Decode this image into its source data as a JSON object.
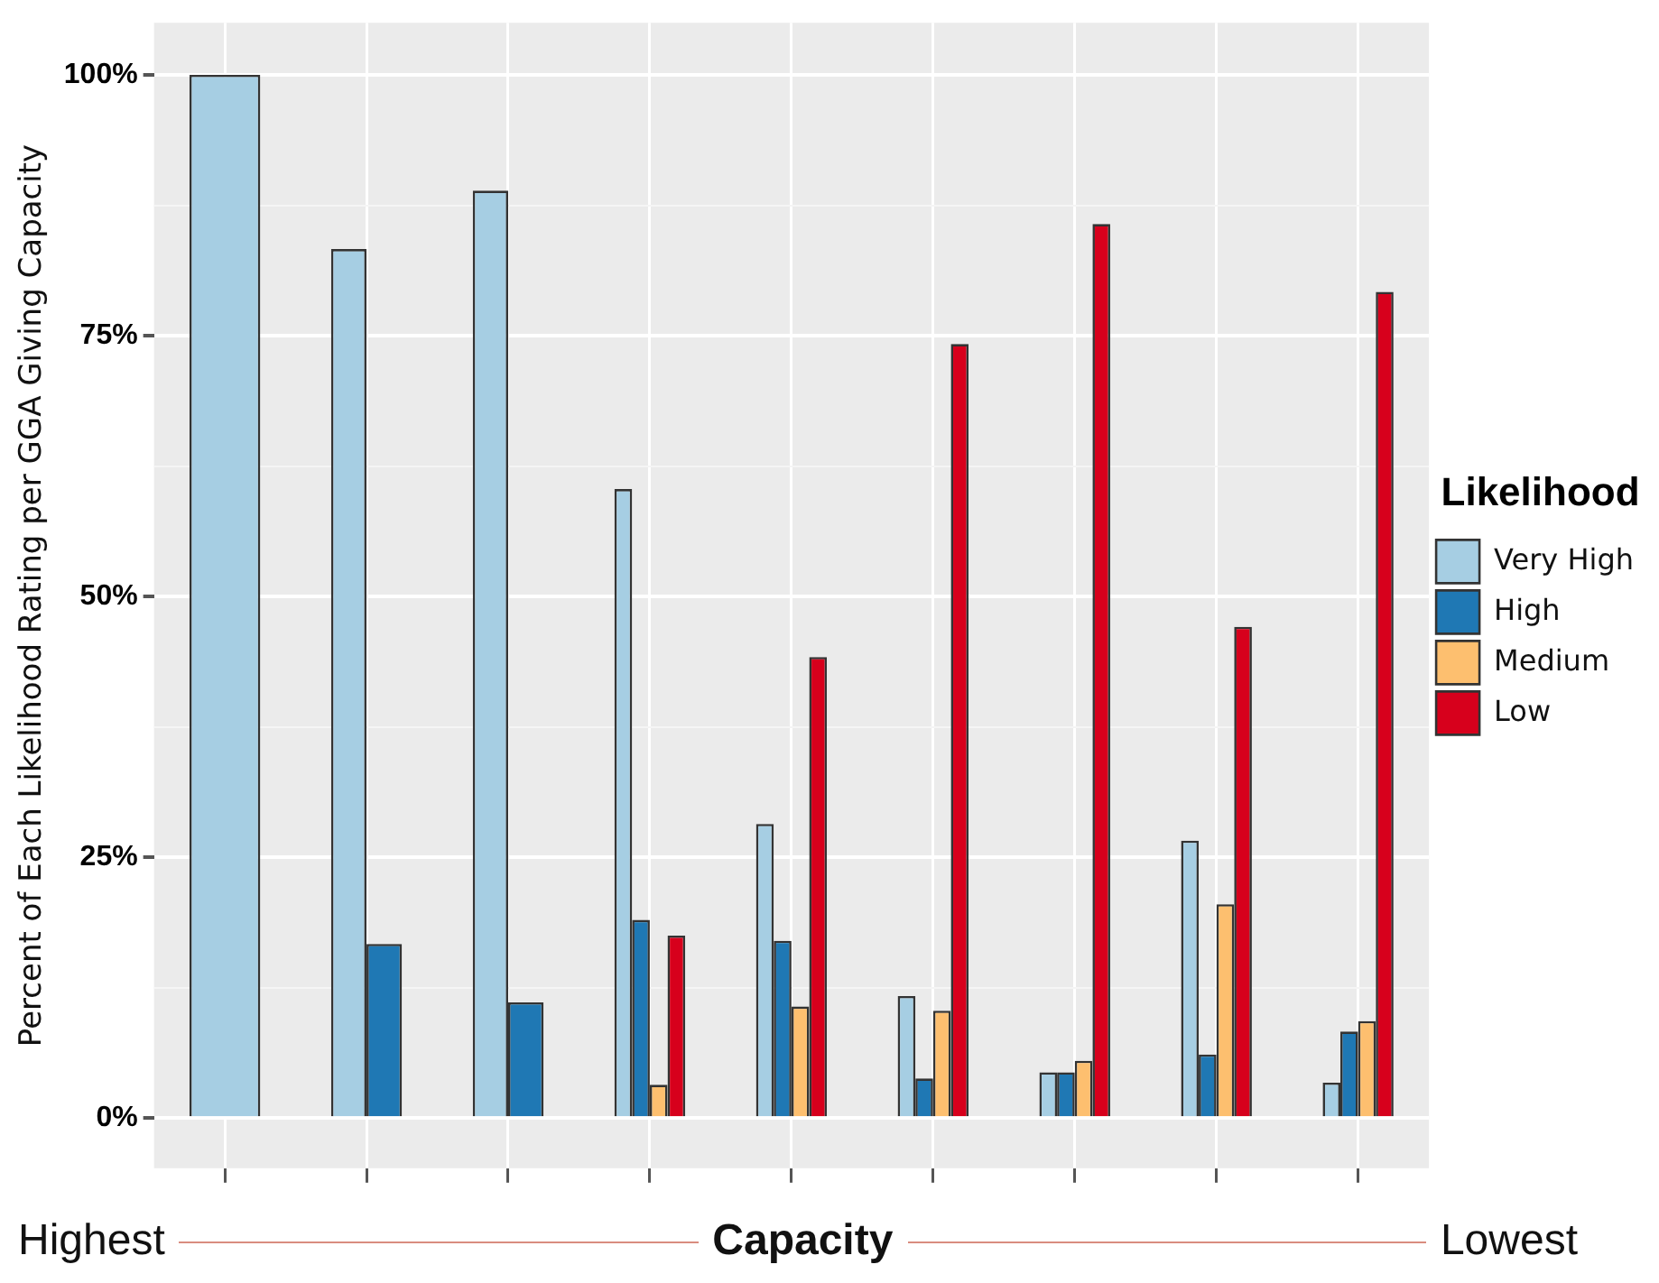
{
  "chart_data": {
    "type": "bar",
    "ylabel": "Percent of Each Likelihood Rating per GGA Giving Capacity",
    "xlabel": "Capacity",
    "annotations": [
      "Highest",
      "Lowest"
    ],
    "categories": [
      null,
      null,
      null,
      null,
      null,
      null,
      null,
      null,
      null
    ],
    "series": [
      {
        "name": "Very High",
        "color": "#a6cee3",
        "values": [
          100,
          83.3,
          88.9,
          60.3,
          28.2,
          11.7,
          4.4,
          26.6,
          3.4
        ]
      },
      {
        "name": "High",
        "color": "#1f78b4",
        "values": [
          null,
          16.7,
          11.1,
          19.0,
          17.0,
          3.8,
          4.4,
          6.1,
          8.3
        ]
      },
      {
        "name": "Medium",
        "color": "#fdbf6f",
        "values": [
          null,
          null,
          null,
          3.2,
          10.7,
          10.3,
          5.5,
          20.5,
          9.3
        ]
      },
      {
        "name": "Low",
        "color": "#d7001c",
        "values": [
          null,
          null,
          null,
          17.5,
          44.2,
          74.2,
          85.7,
          47.1,
          79.2
        ]
      }
    ],
    "ylim": [
      -4.8,
      105
    ],
    "yticks": [
      {
        "value": 0,
        "label": "0%"
      },
      {
        "value": 12.5,
        "label": null
      },
      {
        "value": 25,
        "label": "25%"
      },
      {
        "value": 37.5,
        "label": null
      },
      {
        "value": 50,
        "label": "50%"
      },
      {
        "value": 62.5,
        "label": null
      },
      {
        "value": 75,
        "label": "75%"
      },
      {
        "value": 87.5,
        "label": null
      },
      {
        "value": 100,
        "label": "100%"
      }
    ],
    "grid": true,
    "legend": "right",
    "legend_title": "Likelihood",
    "tick_labels": "y"
  }
}
